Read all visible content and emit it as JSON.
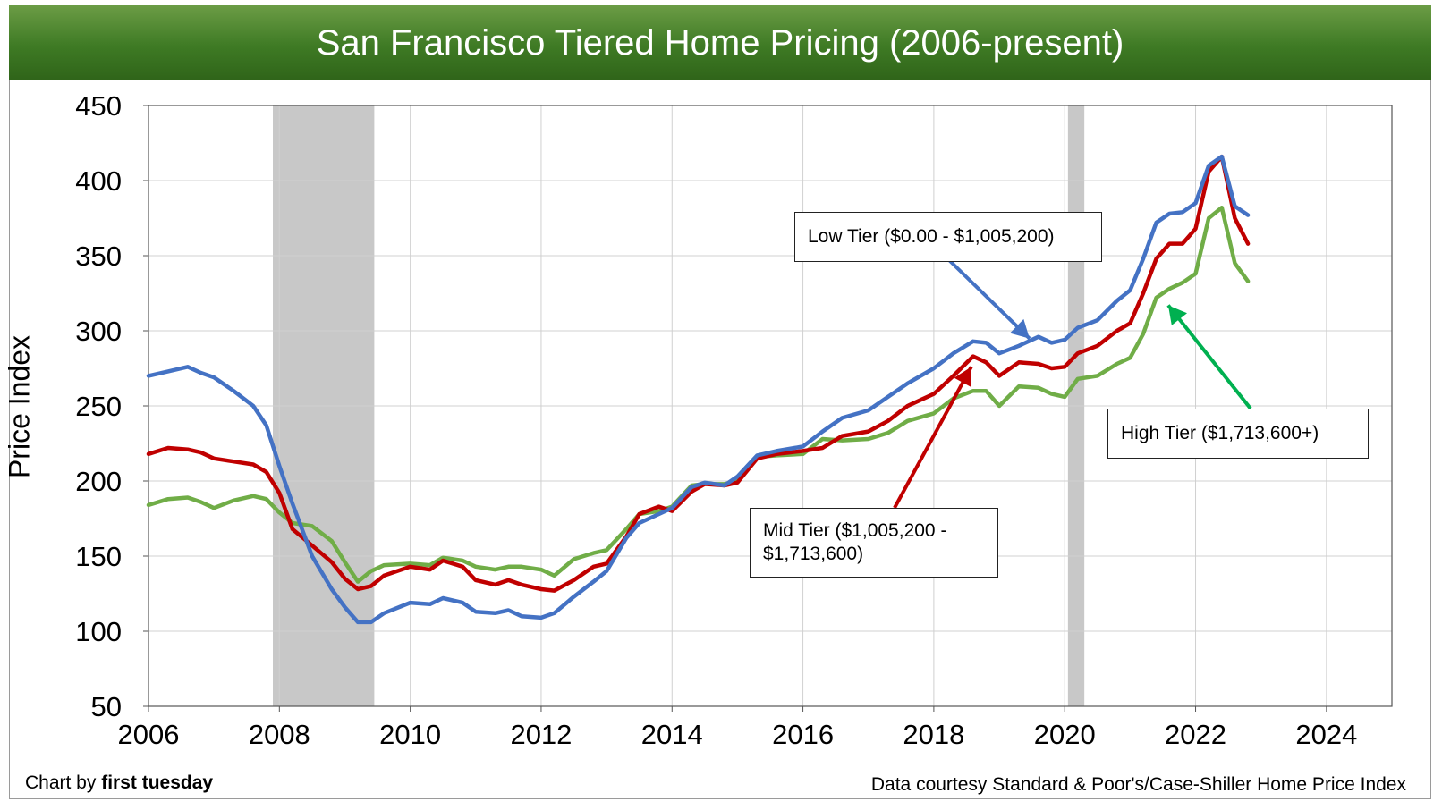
{
  "header": {
    "title": "San Francisco Tiered Home Pricing (2006-present)"
  },
  "footer": {
    "credit_prefix": "Chart by ",
    "credit_name": "first tuesday",
    "source": "Data courtesy Standard & Poor's/Case-Shiller Home Price Index"
  },
  "callouts": {
    "low": "Low Tier ($0.00 - $1,005,200)",
    "mid_line1": "Mid Tier ($1,005,200 -",
    "mid_line2": "$1,713,600)",
    "high": "High Tier ($1,713,600+)"
  },
  "chart_data": {
    "type": "line",
    "title": "San Francisco Tiered Home Pricing (2006-present)",
    "xlabel": "",
    "ylabel": "Price Index",
    "xlim": [
      2006,
      2025
    ],
    "ylim": [
      50,
      450
    ],
    "x_ticks": [
      2006,
      2008,
      2010,
      2012,
      2014,
      2016,
      2018,
      2020,
      2022,
      2024
    ],
    "y_ticks": [
      50,
      100,
      150,
      200,
      250,
      300,
      350,
      400,
      450
    ],
    "grid": true,
    "recessions": [
      [
        2007.9,
        2009.45
      ],
      [
        2020.05,
        2020.3
      ]
    ],
    "colors": {
      "low": "#4472c4",
      "mid": "#c00000",
      "high": "#70ad47",
      "recession": "#c8c8c8"
    },
    "series": [
      {
        "name": "Low Tier ($0.00 - $1,005,200)",
        "key": "low",
        "x": [
          2006,
          2006.3,
          2006.6,
          2006.8,
          2007,
          2007.3,
          2007.6,
          2007.8,
          2008,
          2008.2,
          2008.5,
          2008.8,
          2009,
          2009.2,
          2009.4,
          2009.6,
          2010,
          2010.3,
          2010.5,
          2010.8,
          2011,
          2011.3,
          2011.5,
          2011.7,
          2012,
          2012.2,
          2012.5,
          2012.8,
          2013,
          2013.3,
          2013.5,
          2013.8,
          2014,
          2014.3,
          2014.5,
          2014.8,
          2015,
          2015.3,
          2015.6,
          2016,
          2016.3,
          2016.6,
          2017,
          2017.3,
          2017.6,
          2018,
          2018.3,
          2018.6,
          2018.8,
          2019,
          2019.3,
          2019.6,
          2019.8,
          2020,
          2020.2,
          2020.5,
          2020.8,
          2021,
          2021.2,
          2021.4,
          2021.6,
          2021.8,
          2022,
          2022.2,
          2022.4,
          2022.6,
          2022.8
        ],
        "y": [
          270,
          273,
          276,
          272,
          269,
          260,
          250,
          237,
          210,
          185,
          150,
          128,
          116,
          106,
          106,
          112,
          119,
          118,
          122,
          119,
          113,
          112,
          114,
          110,
          109,
          112,
          123,
          133,
          140,
          162,
          172,
          178,
          182,
          196,
          199,
          197,
          203,
          217,
          220,
          223,
          233,
          242,
          247,
          256,
          265,
          275,
          285,
          293,
          292,
          285,
          290,
          296,
          292,
          294,
          302,
          307,
          320,
          327,
          348,
          372,
          378,
          379,
          385,
          410,
          416,
          383,
          377
        ]
      },
      {
        "name": "Mid Tier ($1,005,200 - $1,713,600)",
        "key": "mid",
        "x": [
          2006,
          2006.3,
          2006.6,
          2006.8,
          2007,
          2007.3,
          2007.6,
          2007.8,
          2008,
          2008.2,
          2008.5,
          2008.8,
          2009,
          2009.2,
          2009.4,
          2009.6,
          2010,
          2010.3,
          2010.5,
          2010.8,
          2011,
          2011.3,
          2011.5,
          2011.7,
          2012,
          2012.2,
          2012.5,
          2012.8,
          2013,
          2013.3,
          2013.5,
          2013.8,
          2014,
          2014.3,
          2014.5,
          2014.8,
          2015,
          2015.3,
          2015.6,
          2016,
          2016.3,
          2016.6,
          2017,
          2017.3,
          2017.6,
          2018,
          2018.3,
          2018.6,
          2018.8,
          2019,
          2019.3,
          2019.6,
          2019.8,
          2020,
          2020.2,
          2020.5,
          2020.8,
          2021,
          2021.2,
          2021.4,
          2021.6,
          2021.8,
          2022,
          2022.2,
          2022.4,
          2022.6,
          2022.8
        ],
        "y": [
          218,
          222,
          221,
          219,
          215,
          213,
          211,
          206,
          192,
          168,
          157,
          146,
          135,
          128,
          130,
          137,
          143,
          141,
          147,
          143,
          134,
          131,
          134,
          131,
          128,
          127,
          134,
          143,
          145,
          163,
          178,
          183,
          180,
          193,
          198,
          197,
          199,
          215,
          218,
          220,
          222,
          230,
          233,
          240,
          250,
          258,
          270,
          283,
          279,
          270,
          279,
          278,
          275,
          276,
          285,
          290,
          300,
          305,
          325,
          348,
          358,
          358,
          368,
          406,
          416,
          375,
          358
        ]
      },
      {
        "name": "High Tier ($1,713,600+)",
        "key": "high",
        "x": [
          2006,
          2006.3,
          2006.6,
          2006.8,
          2007,
          2007.3,
          2007.6,
          2007.8,
          2008,
          2008.2,
          2008.5,
          2008.8,
          2009,
          2009.2,
          2009.4,
          2009.6,
          2010,
          2010.3,
          2010.5,
          2010.8,
          2011,
          2011.3,
          2011.5,
          2011.7,
          2012,
          2012.2,
          2012.5,
          2012.8,
          2013,
          2013.3,
          2013.5,
          2013.8,
          2014,
          2014.3,
          2014.5,
          2014.8,
          2015,
          2015.3,
          2015.6,
          2016,
          2016.3,
          2016.6,
          2017,
          2017.3,
          2017.6,
          2018,
          2018.3,
          2018.6,
          2018.8,
          2019,
          2019.3,
          2019.6,
          2019.8,
          2020,
          2020.2,
          2020.5,
          2020.8,
          2021,
          2021.2,
          2021.4,
          2021.6,
          2021.8,
          2022,
          2022.2,
          2022.4,
          2022.6,
          2022.8
        ],
        "y": [
          184,
          188,
          189,
          186,
          182,
          187,
          190,
          188,
          179,
          172,
          170,
          160,
          146,
          133,
          140,
          144,
          145,
          144,
          149,
          147,
          143,
          141,
          143,
          143,
          141,
          137,
          148,
          152,
          154,
          168,
          178,
          180,
          183,
          197,
          198,
          198,
          200,
          216,
          217,
          218,
          228,
          227,
          228,
          232,
          240,
          245,
          255,
          260,
          260,
          250,
          263,
          262,
          258,
          256,
          268,
          270,
          278,
          282,
          298,
          322,
          328,
          332,
          338,
          375,
          382,
          345,
          333
        ]
      }
    ]
  }
}
